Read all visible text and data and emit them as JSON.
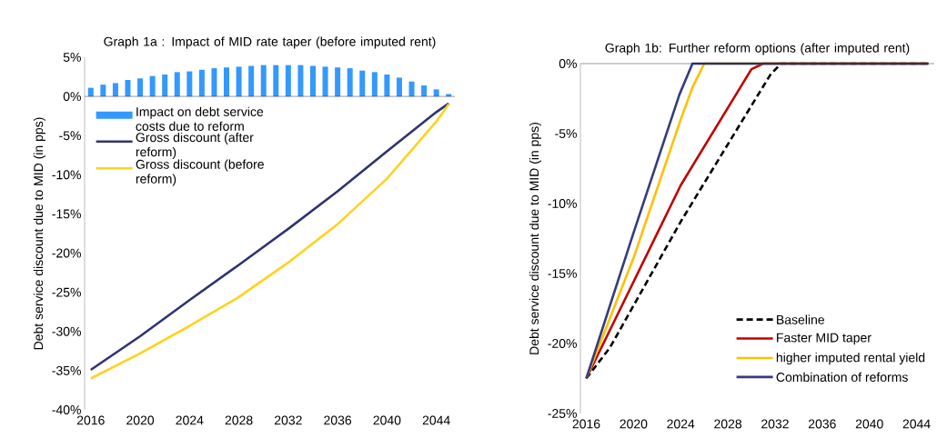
{
  "chart_data": [
    {
      "type": "line",
      "title": "Graph 1a : Impact of MID rate taper (before imputed rent)",
      "ylabel": "Debt service discount due to MID (in pps)",
      "x": [
        2016,
        2017,
        2018,
        2019,
        2020,
        2021,
        2022,
        2023,
        2024,
        2025,
        2026,
        2027,
        2028,
        2029,
        2030,
        2031,
        2032,
        2033,
        2034,
        2035,
        2036,
        2037,
        2038,
        2039,
        2040,
        2041,
        2042,
        2043,
        2044,
        2045
      ],
      "series": [
        {
          "name": "Impact on debt service costs due to reform",
          "type": "bar",
          "color": "#3399ff",
          "values": [
            1.1,
            1.5,
            1.7,
            2.1,
            2.3,
            2.6,
            2.8,
            3.1,
            3.2,
            3.4,
            3.6,
            3.7,
            3.8,
            3.9,
            4.0,
            4.0,
            4.0,
            4.0,
            3.9,
            3.8,
            3.7,
            3.6,
            3.3,
            3.1,
            2.8,
            2.4,
            1.9,
            1.4,
            0.9,
            0.3
          ]
        },
        {
          "name": "Gross discount (after reform)",
          "type": "line",
          "color": "#2e3470",
          "x": [
            2016,
            2020,
            2024,
            2028,
            2032,
            2036,
            2040,
            2044,
            2045
          ],
          "values": [
            -34.9,
            -30.6,
            -26.0,
            -21.5,
            -16.9,
            -12.1,
            -7.0,
            -2.0,
            -0.9
          ]
        },
        {
          "name": "Gross discount (before reform)",
          "type": "line",
          "color": "#ffd21f",
          "x": [
            2016,
            2020,
            2024,
            2028,
            2032,
            2036,
            2040,
            2044,
            2045
          ],
          "values": [
            -36.0,
            -32.8,
            -29.3,
            -25.6,
            -21.2,
            -16.3,
            -10.5,
            -3.2,
            -1.0
          ]
        }
      ],
      "xlim": [
        2015.5,
        2045.5
      ],
      "xticks": [
        2016,
        2020,
        2024,
        2028,
        2032,
        2036,
        2040,
        2044
      ],
      "ylim": [
        -40,
        5
      ],
      "yticks": [
        {
          "value": -40,
          "label": "-40%"
        },
        {
          "value": -35,
          "label": "-35%"
        },
        {
          "value": -30,
          "label": "-30%"
        },
        {
          "value": -25,
          "label": "-25%"
        },
        {
          "value": -20,
          "label": "-20%"
        },
        {
          "value": -15,
          "label": "-15%"
        },
        {
          "value": -10,
          "label": "-10%"
        },
        {
          "value": -5,
          "label": "-5%"
        },
        {
          "value": 0,
          "label": "0%"
        },
        {
          "value": 5,
          "label": "5%"
        }
      ],
      "legend": "top left"
    },
    {
      "type": "line",
      "title": "Graph 1b: Further reform options (after imputed rent)",
      "ylabel": "Debt service discount due to MID (in pps)",
      "series": [
        {
          "name": "Baseline",
          "color": "#000000",
          "line_style": "dashed",
          "x": [
            2016,
            2018,
            2024,
            2030,
            2031.6,
            2032.5,
            2045
          ],
          "values": [
            -22.5,
            -20.3,
            -11.3,
            -3.0,
            -0.8,
            0,
            0
          ]
        },
        {
          "name": "Faster MID taper",
          "color": "#c00000",
          "x": [
            2016,
            2024,
            2030,
            2031,
            2045
          ],
          "values": [
            -22.5,
            -8.7,
            -0.4,
            0,
            0
          ]
        },
        {
          "name": "higher imputed rental yield",
          "color": "#ffc000",
          "x": [
            2016,
            2020,
            2024,
            2025,
            2026,
            2045
          ],
          "values": [
            -22.5,
            -13.9,
            -4.0,
            -1.7,
            0,
            0
          ]
        },
        {
          "name": "Combination of reforms",
          "color": "#353c7c",
          "x": [
            2016,
            2020,
            2023.9,
            2025,
            2045
          ],
          "values": [
            -22.5,
            -12.1,
            -2.2,
            0,
            0
          ]
        }
      ],
      "xlim": [
        2015.5,
        2045.5
      ],
      "xticks": [
        2016,
        2020,
        2024,
        2028,
        2032,
        2036,
        2040,
        2044
      ],
      "ylim": [
        -25,
        0
      ],
      "yticks": [
        {
          "value": -25,
          "label": "-25%"
        },
        {
          "value": -20,
          "label": "-20%"
        },
        {
          "value": -15,
          "label": "-15%"
        },
        {
          "value": -10,
          "label": "-10%"
        },
        {
          "value": -5,
          "label": "-5%"
        },
        {
          "value": 0,
          "label": "0%"
        }
      ],
      "legend": "bottom right"
    }
  ]
}
